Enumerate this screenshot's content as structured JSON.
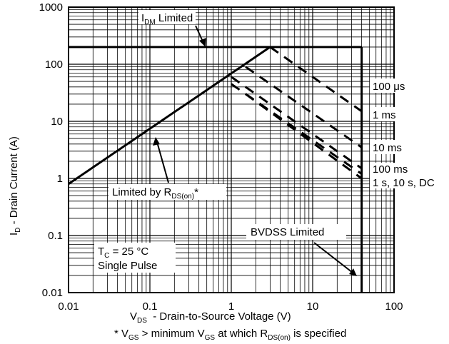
{
  "chart_data": {
    "type": "line",
    "xscale": "log",
    "yscale": "log",
    "xlim": [
      0.01,
      100
    ],
    "ylim": [
      0.01,
      1000
    ],
    "grid": true,
    "xticks": [
      0.01,
      0.1,
      1,
      10,
      100
    ],
    "xtick_labels": [
      "0.01",
      "0.1",
      "1",
      "10",
      "100"
    ],
    "yticks": [
      0.01,
      0.1,
      1,
      10,
      100,
      1000
    ],
    "ytick_labels": [
      "0.01",
      "0.1",
      "1",
      "10",
      "100",
      "1000"
    ],
    "xlabel": {
      "main": "V",
      "sub": "DS",
      "rest": "  - Drain-to-Source Voltage (V)"
    },
    "ylabel": {
      "main": "I",
      "sub": "D",
      "rest": " - Drain Current (A)"
    },
    "footnote": {
      "p1": "* V",
      "s1": "GS",
      "p2": " > minimum V",
      "s2": "GS",
      "p3": " at which R",
      "s3": "DS(on)",
      "p4": " is specified"
    },
    "annotations": {
      "idm": {
        "main": "I",
        "sub": "DM",
        "rest": " Limited"
      },
      "rds": {
        "main": "Limited by R",
        "sub": "DS(on)",
        "rest": "*"
      },
      "bvdss": "BVDSS Limited",
      "tc": {
        "main": "T",
        "sub": "C",
        "rest": " = 25 °C"
      },
      "pulse": "Single Pulse"
    },
    "series": [
      {
        "name": "",
        "style": "solid",
        "x": [
          0.01,
          3
        ],
        "y": [
          0.8,
          200
        ]
      },
      {
        "name": "",
        "style": "solid",
        "x": [
          0.01,
          40
        ],
        "y": [
          200,
          200
        ]
      },
      {
        "name": "",
        "style": "solid",
        "x": [
          40,
          40
        ],
        "y": [
          200,
          0.01
        ]
      },
      {
        "name": "100 μs",
        "style": "dashed",
        "x": [
          3,
          40
        ],
        "y": [
          200,
          15
        ]
      },
      {
        "name": "1 ms",
        "style": "dashed",
        "x": [
          1.5,
          40
        ],
        "y": [
          90,
          3.5
        ]
      },
      {
        "name": "10 ms",
        "style": "dashed",
        "x": [
          1,
          40
        ],
        "y": [
          60,
          1.5
        ]
      },
      {
        "name": "100 ms",
        "style": "dashed",
        "x": [
          1,
          40
        ],
        "y": [
          45,
          1.2
        ]
      },
      {
        "name": "1 s, 10 s, DC",
        "style": "dashed",
        "x": [
          1.5,
          40
        ],
        "y": [
          30,
          1
        ]
      }
    ]
  }
}
